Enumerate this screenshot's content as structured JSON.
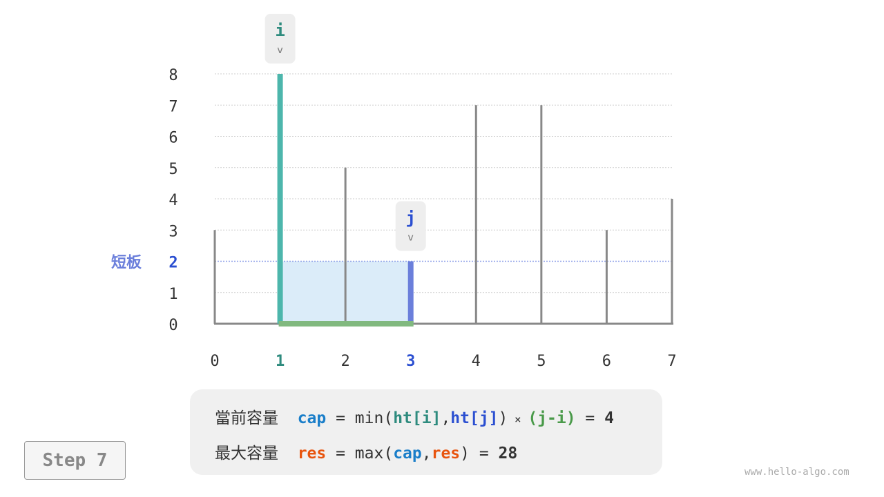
{
  "heights": [
    3,
    8,
    5,
    2,
    7,
    7,
    3,
    4
  ],
  "x_labels": [
    "0",
    "1",
    "2",
    "3",
    "4",
    "5",
    "6",
    "7"
  ],
  "y_labels": [
    "0",
    "1",
    "2",
    "3",
    "4",
    "5",
    "6",
    "7",
    "8"
  ],
  "pointer_i": {
    "label": "i",
    "index": 1,
    "arrow": "v"
  },
  "pointer_j": {
    "label": "j",
    "index": 3,
    "arrow": "v"
  },
  "short_board": {
    "label": "短板",
    "value": "2"
  },
  "colors": {
    "i": "#4db6ac",
    "j": "#6b7fdb",
    "width": "#81b97f",
    "water": "#dbecf9",
    "bar": "#888888",
    "cap": "#1a7ec9",
    "res": "#e8540e",
    "ht_i": "#2e8b7e",
    "ht_j": "#2b4fd1",
    "ji": "#4a9a4a"
  },
  "formula": {
    "line1": {
      "prefix": "當前容量",
      "var": "cap",
      "eq": " = min(",
      "hti": "ht[i]",
      "comma": ",",
      "htj": "ht[j]",
      "close": ")",
      "times": " × ",
      "ji": "(j-i)",
      "eq2": " = ",
      "value": "4"
    },
    "line2": {
      "prefix": "最大容量",
      "var": "res",
      "eq": " = max(",
      "cap": "cap",
      "comma": ",",
      "res": "res",
      "close": ")",
      "eq2": " = ",
      "value": "28"
    }
  },
  "step": "Step 7",
  "watermark": "www.hello-algo.com"
}
